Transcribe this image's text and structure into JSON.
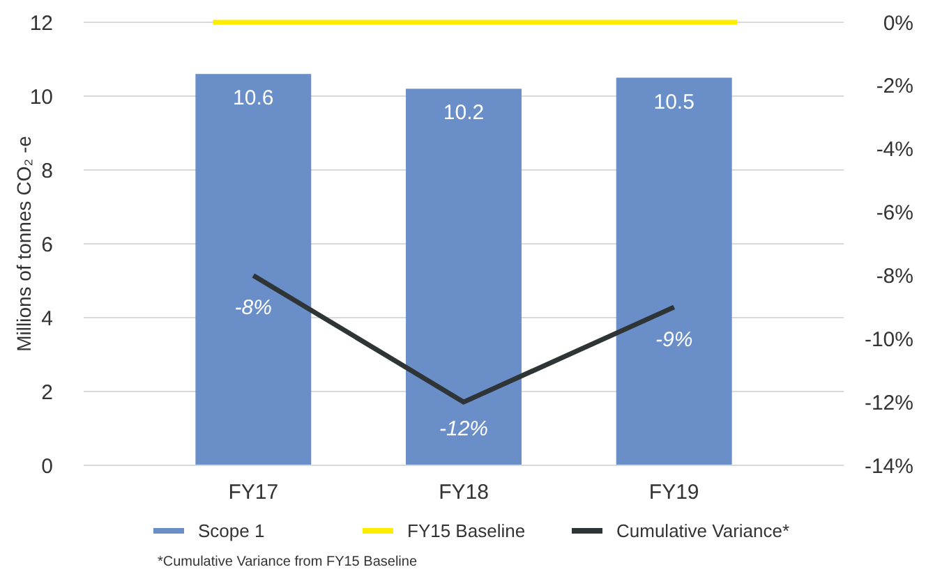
{
  "chart_data": {
    "type": "bar",
    "categories": [
      "FY17",
      "FY18",
      "FY19"
    ],
    "series": [
      {
        "name": "Scope 1",
        "color": "#6a8fc8",
        "values": [
          10.6,
          10.2,
          10.5
        ],
        "value_labels": [
          "10.6",
          "10.2",
          "10.5"
        ]
      },
      {
        "name": "Cumulative Variance*",
        "type": "line",
        "axis": "y2",
        "color": "#2f3537",
        "values": [
          -8,
          -12,
          -9
        ],
        "value_labels": [
          "-8%",
          "-12%",
          "-9%"
        ]
      }
    ],
    "ylabel": "Millions of tonnes CO₂ -e",
    "ylim": [
      0,
      12
    ],
    "yticks": [
      0,
      2,
      4,
      6,
      8,
      10,
      12
    ],
    "y2lim": [
      -14,
      0
    ],
    "y2ticks": [
      {
        "value": 0,
        "label": "0%"
      },
      {
        "value": -2,
        "label": "-2%"
      },
      {
        "value": -4,
        "label": "-4%"
      },
      {
        "value": -6,
        "label": "-6%"
      },
      {
        "value": -8,
        "label": "-8%"
      },
      {
        "value": -10,
        "label": "-10%"
      },
      {
        "value": -12,
        "label": "-12%"
      },
      {
        "value": -14,
        "label": "-14%"
      }
    ],
    "ref_lines": [
      {
        "axis": "y2",
        "value": 0,
        "label": "FY15 Baseline",
        "color": "#ffed00"
      }
    ],
    "grid": "y",
    "legend": "bottom",
    "marker": "none",
    "annotations": [
      "*Cumulative Variance from FY15 Baseline"
    ]
  }
}
